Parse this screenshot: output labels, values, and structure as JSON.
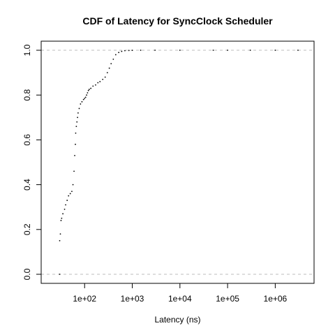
{
  "chart_data": {
    "type": "scatter",
    "title": "CDF of Latency for SyncClock Scheduler",
    "xlabel": "Latency (ns)",
    "ylabel": "",
    "x_scale": "log10",
    "xlim": [
      20,
      4000000
    ],
    "ylim": [
      0,
      1
    ],
    "x_ticks": [
      100,
      1000,
      10000,
      100000,
      1000000
    ],
    "x_tick_labels": [
      "1e+02",
      "1e+03",
      "1e+04",
      "1e+05",
      "1e+06"
    ],
    "y_ticks": [
      0,
      0.2,
      0.4,
      0.6,
      0.8,
      1
    ],
    "y_tick_labels": [
      "0.0",
      "0.2",
      "0.4",
      "0.6",
      "0.8",
      "1.0"
    ],
    "reference_lines_y": [
      0,
      1
    ],
    "grid": false,
    "series": [
      {
        "x": [
          30,
          30,
          31,
          32,
          33,
          35,
          38,
          40,
          43,
          46,
          50,
          54,
          57,
          60,
          62,
          64,
          65,
          67,
          69,
          71,
          73,
          77,
          82,
          88,
          95,
          100,
          105,
          110,
          115,
          120,
          125,
          135,
          150,
          170,
          190,
          210,
          240,
          270,
          300,
          330,
          360,
          400,
          450,
          520,
          600,
          700,
          850,
          1000,
          1500,
          3000,
          10000,
          50000,
          100000,
          300000,
          1000000,
          3000000
        ],
        "y": [
          0.0,
          0.15,
          0.18,
          0.24,
          0.25,
          0.27,
          0.29,
          0.31,
          0.33,
          0.35,
          0.36,
          0.37,
          0.4,
          0.46,
          0.53,
          0.58,
          0.63,
          0.66,
          0.68,
          0.7,
          0.72,
          0.74,
          0.76,
          0.77,
          0.78,
          0.785,
          0.79,
          0.8,
          0.81,
          0.82,
          0.825,
          0.83,
          0.84,
          0.845,
          0.855,
          0.86,
          0.87,
          0.88,
          0.9,
          0.92,
          0.94,
          0.96,
          0.98,
          0.99,
          0.995,
          0.998,
          0.999,
          0.9995,
          1.0,
          1.0,
          1.0,
          1.0,
          1.0,
          1.0,
          1.0,
          1.0
        ]
      }
    ]
  }
}
